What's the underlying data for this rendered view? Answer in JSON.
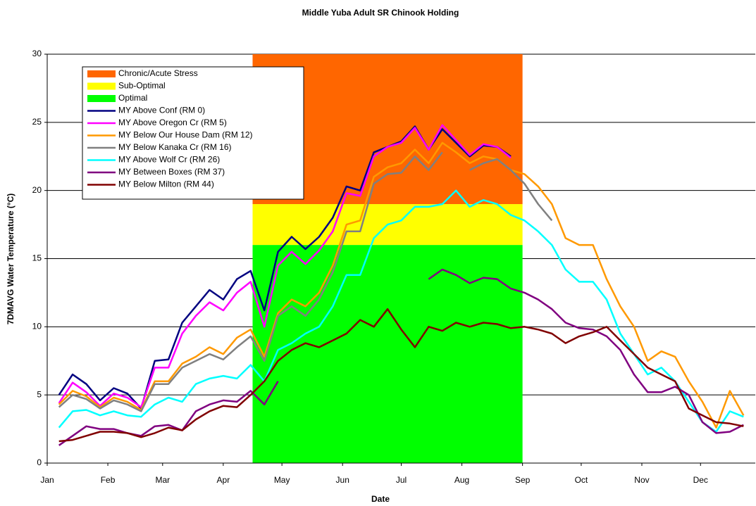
{
  "chart_data": {
    "type": "line",
    "title": "Middle Yuba Adult SR Chinook Holding",
    "x_label": "Date",
    "y_label": "7DMAVG Water Temperature (°C)",
    "xlim": [
      1,
      363
    ],
    "xticks": [
      {
        "value": 1,
        "label": "Jan"
      },
      {
        "value": 32,
        "label": "Feb"
      },
      {
        "value": 60,
        "label": "Mar"
      },
      {
        "value": 91,
        "label": "Apr"
      },
      {
        "value": 121,
        "label": "May"
      },
      {
        "value": 152,
        "label": "Jun"
      },
      {
        "value": 182,
        "label": "Jul"
      },
      {
        "value": 213,
        "label": "Aug"
      },
      {
        "value": 244,
        "label": "Sep"
      },
      {
        "value": 274,
        "label": "Oct"
      },
      {
        "value": 305,
        "label": "Nov"
      },
      {
        "value": 335,
        "label": "Dec"
      }
    ],
    "ylim": [
      0,
      30
    ],
    "yticks": [
      0,
      5,
      10,
      15,
      20,
      25,
      30
    ],
    "grid": true,
    "legend": "upper left",
    "bands": [
      {
        "name": "Chronic/Acute Stress",
        "color": "#ff6600",
        "x": [
          106,
          244
        ],
        "y": [
          19,
          30
        ]
      },
      {
        "name": "Sub-Optimal",
        "color": "#ffff00",
        "x": [
          106,
          244
        ],
        "y": [
          16,
          19
        ]
      },
      {
        "name": "Optimal",
        "color": "#00ff00",
        "x": [
          106,
          244
        ],
        "y": [
          0,
          16
        ]
      }
    ],
    "x": [
      7,
      14,
      21,
      28,
      35,
      42,
      49,
      56,
      63,
      70,
      77,
      84,
      91,
      98,
      105,
      112,
      119,
      126,
      133,
      140,
      147,
      154,
      161,
      168,
      175,
      182,
      189,
      196,
      203,
      210,
      217,
      224,
      231,
      238,
      245,
      252,
      259,
      266,
      273,
      280,
      287,
      294,
      301,
      308,
      315,
      322,
      329,
      336,
      343,
      350,
      357
    ],
    "series": [
      {
        "name": "MY Above Conf (RM 0)",
        "color": "#000080",
        "values": [
          5.0,
          6.5,
          5.8,
          4.6,
          5.5,
          5.1,
          4.0,
          7.5,
          7.6,
          10.3,
          11.5,
          12.7,
          12.0,
          13.5,
          14.1,
          11.2,
          15.5,
          16.6,
          15.7,
          16.6,
          18.0,
          20.3,
          20.0,
          22.8,
          23.2,
          23.6,
          24.7,
          23.0,
          24.5,
          23.5,
          22.5,
          23.3,
          23.2,
          22.5,
          null,
          null,
          null,
          null,
          null,
          null,
          null,
          null,
          null,
          null,
          null,
          null,
          null,
          null,
          null,
          null,
          null
        ]
      },
      {
        "name": "MY Above Oregon Cr (RM 5)",
        "color": "#ff00ff",
        "values": [
          4.4,
          5.9,
          5.2,
          4.2,
          5.1,
          4.8,
          4.1,
          7.0,
          7.0,
          9.5,
          10.8,
          11.8,
          11.2,
          12.5,
          13.3,
          10.0,
          14.5,
          15.5,
          14.6,
          15.6,
          17.0,
          19.8,
          19.6,
          22.5,
          23.2,
          23.5,
          24.6,
          23.0,
          24.8,
          23.7,
          22.6,
          23.4,
          23.2,
          22.4,
          null,
          null,
          null,
          null,
          null,
          null,
          null,
          null,
          null,
          null,
          null,
          null,
          null,
          null,
          null,
          null,
          null
        ]
      },
      {
        "name": "MY Below Our House Dam (RM 12)",
        "color": "#ff9900",
        "values": [
          4.3,
          5.3,
          4.9,
          4.1,
          4.8,
          4.5,
          3.9,
          6.0,
          6.0,
          7.3,
          7.8,
          8.5,
          8.0,
          9.2,
          9.8,
          7.8,
          11.0,
          12.0,
          11.5,
          12.5,
          14.5,
          17.5,
          17.8,
          21.0,
          21.7,
          22.0,
          23.0,
          22.0,
          23.5,
          22.8,
          22.0,
          22.5,
          22.3,
          21.5,
          21.2,
          20.3,
          19.0,
          16.5,
          16.0,
          16.0,
          13.5,
          11.5,
          10.0,
          7.5,
          8.2,
          7.8,
          6.0,
          4.5,
          2.6,
          5.3,
          3.5
        ]
      },
      {
        "name": "MY Below Kanaka Cr (RM 16)",
        "color": "#808080",
        "values": [
          4.1,
          5.0,
          4.7,
          4.0,
          4.6,
          4.3,
          3.8,
          5.8,
          5.8,
          7.0,
          7.5,
          8.0,
          7.6,
          8.5,
          9.3,
          7.5,
          10.8,
          11.5,
          10.8,
          12.0,
          14.0,
          17.0,
          17.0,
          20.5,
          21.2,
          21.3,
          22.5,
          21.5,
          22.8,
          null,
          21.5,
          22.0,
          22.3,
          21.5,
          20.5,
          19.0,
          17.8,
          null,
          null,
          null,
          null,
          null,
          null,
          null,
          null,
          null,
          null,
          null,
          null,
          null,
          null
        ]
      },
      {
        "name": "MY Above Wolf Cr (RM 26)",
        "color": "#00ffff",
        "values": [
          2.6,
          3.8,
          3.9,
          3.5,
          3.8,
          3.5,
          3.4,
          4.3,
          4.8,
          4.5,
          5.8,
          6.2,
          6.4,
          6.2,
          7.2,
          6.0,
          8.3,
          8.8,
          9.5,
          10.0,
          11.5,
          13.8,
          13.8,
          16.5,
          17.5,
          17.8,
          18.8,
          18.8,
          19.0,
          20.0,
          18.8,
          19.3,
          19.0,
          18.2,
          17.8,
          17.0,
          16.0,
          14.2,
          13.3,
          13.3,
          12.0,
          9.5,
          8.0,
          6.5,
          7.0,
          6.0,
          4.5,
          3.0,
          2.3,
          3.8,
          3.4
        ]
      },
      {
        "name": "MY Between Boxes (RM 37)",
        "color": "#800080",
        "values": [
          1.3,
          2.0,
          2.7,
          2.5,
          2.5,
          2.2,
          2.0,
          2.7,
          2.8,
          2.4,
          3.8,
          4.3,
          4.6,
          4.5,
          5.3,
          4.3,
          6.0,
          null,
          null,
          null,
          null,
          null,
          null,
          null,
          null,
          null,
          null,
          13.5,
          14.2,
          13.8,
          13.2,
          13.6,
          13.5,
          12.8,
          12.5,
          12.0,
          11.3,
          10.3,
          9.9,
          9.8,
          9.3,
          8.3,
          6.5,
          5.2,
          5.2,
          5.6,
          5.0,
          3.0,
          2.2,
          2.3,
          2.8
        ]
      },
      {
        "name": "MY Below Milton (RM 44)",
        "color": "#800000",
        "values": [
          1.6,
          1.7,
          2.0,
          2.3,
          2.3,
          2.2,
          1.9,
          2.2,
          2.6,
          2.4,
          3.2,
          3.8,
          4.2,
          4.1,
          5.0,
          6.0,
          7.5,
          8.3,
          8.8,
          8.5,
          9.0,
          9.5,
          10.5,
          10.0,
          11.3,
          9.8,
          8.5,
          10.0,
          9.7,
          10.3,
          10.0,
          10.3,
          10.2,
          9.9,
          10.0,
          9.8,
          9.5,
          8.8,
          9.3,
          9.6,
          10.0,
          9.0,
          8.0,
          7.0,
          6.5,
          6.0,
          4.0,
          3.5,
          3.0,
          2.9,
          2.7
        ]
      }
    ]
  }
}
